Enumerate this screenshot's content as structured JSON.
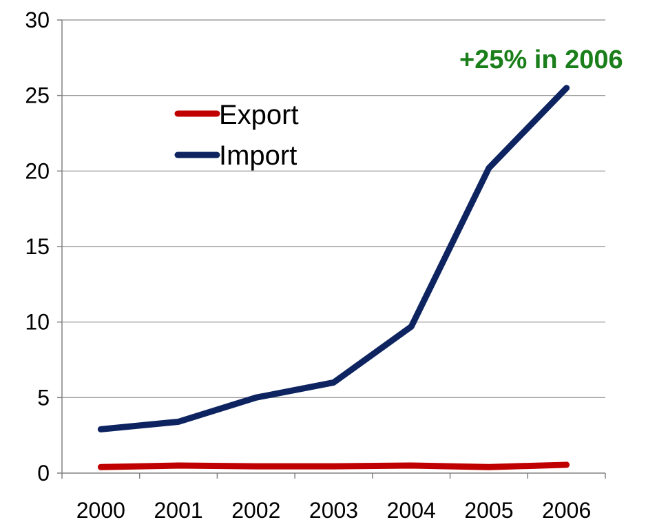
{
  "chart_data": {
    "type": "line",
    "categories": [
      "2000",
      "2001",
      "2002",
      "2003",
      "2004",
      "2005",
      "2006"
    ],
    "series": [
      {
        "name": "Export",
        "color": "#c00000",
        "values": [
          0.4,
          0.5,
          0.45,
          0.45,
          0.5,
          0.4,
          0.55
        ]
      },
      {
        "name": "Import",
        "color": "#0d2461",
        "values": [
          2.9,
          3.4,
          5.0,
          6.0,
          9.7,
          20.2,
          25.5
        ]
      }
    ],
    "ylim": [
      0,
      30
    ],
    "yticks": [
      "0",
      "5",
      "10",
      "15",
      "20",
      "25",
      "30"
    ],
    "grid": true,
    "legend_position": "top-left",
    "annotation": {
      "text": "+25% in 2006",
      "color": "#1a7f1a"
    }
  }
}
